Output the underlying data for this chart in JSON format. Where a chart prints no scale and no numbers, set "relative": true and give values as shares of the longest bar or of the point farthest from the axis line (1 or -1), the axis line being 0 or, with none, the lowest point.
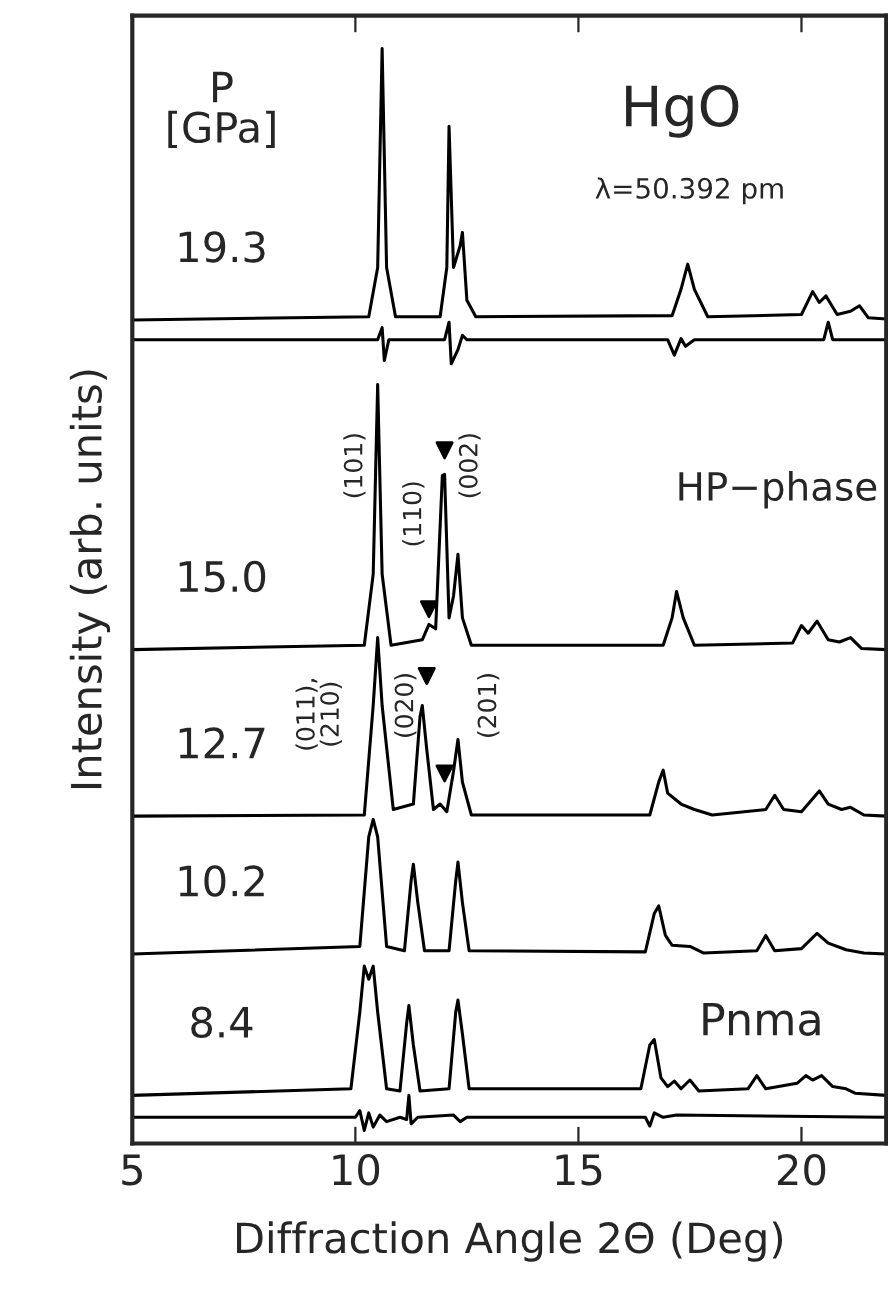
{
  "chart_data": {
    "type": "line",
    "relative": true,
    "xlabel": "Diffraction Angle 2Θ (Deg)",
    "ylabel": "Intensity (arb. units)",
    "xlim": [
      5,
      21.9
    ],
    "xticks": [
      5,
      10,
      15,
      20
    ],
    "grid": false,
    "legend": false,
    "marker": "none",
    "line_style": "solid",
    "annotations": [
      "P\n[GPa]",
      "HgO",
      "λ=50.392 pm",
      "HP−phase",
      "Pnma",
      "(101)",
      "(110)",
      "(002)",
      "(011),\n(210)",
      "(020)",
      "(201)"
    ],
    "series": [
      {
        "name": "19.3",
        "color": "#000000",
        "x": [
          5,
          10.3,
          10.5,
          10.6,
          10.7,
          10.9,
          11.9,
          12.05,
          12.1,
          12.2,
          12.35,
          12.4,
          12.5,
          12.7,
          17.1,
          17.3,
          17.45,
          17.6,
          17.9,
          20.0,
          20.25,
          20.4,
          20.55,
          20.8,
          21.1,
          21.3,
          21.5,
          21.9
        ],
        "values": [
          0.752,
          0.755,
          0.8,
          1.0,
          0.8,
          0.755,
          0.755,
          0.8,
          0.929,
          0.8,
          0.82,
          0.832,
          0.77,
          0.755,
          0.756,
          0.78,
          0.803,
          0.78,
          0.755,
          0.757,
          0.778,
          0.768,
          0.774,
          0.757,
          0.76,
          0.765,
          0.754,
          0.753
        ]
      },
      {
        "color": "#000000",
        "x": [
          5,
          10.5,
          10.6,
          10.65,
          10.75,
          12.0,
          12.1,
          12.15,
          12.3,
          12.4,
          12.5,
          17.0,
          17.15,
          17.3,
          17.4,
          17.6,
          20.5,
          20.6,
          20.7,
          21.9
        ],
        "values": [
          0.734,
          0.734,
          0.745,
          0.715,
          0.734,
          0.734,
          0.75,
          0.712,
          0.725,
          0.738,
          0.734,
          0.734,
          0.72,
          0.735,
          0.728,
          0.734,
          0.734,
          0.75,
          0.734,
          0.734
        ]
      },
      {
        "name": "15.0",
        "color": "#000000",
        "x": [
          5,
          10.2,
          10.4,
          10.5,
          10.6,
          10.8,
          11.5,
          11.65,
          11.8,
          11.95,
          12.0,
          12.1,
          12.2,
          12.3,
          12.4,
          12.6,
          16.9,
          17.1,
          17.2,
          17.35,
          17.6,
          19.8,
          20.0,
          20.15,
          20.35,
          20.6,
          20.85,
          21.1,
          21.35,
          21.9
        ],
        "values": [
          0.451,
          0.455,
          0.52,
          0.693,
          0.52,
          0.455,
          0.46,
          0.474,
          0.47,
          0.61,
          0.611,
          0.48,
          0.5,
          0.538,
          0.48,
          0.455,
          0.455,
          0.48,
          0.504,
          0.48,
          0.455,
          0.457,
          0.473,
          0.466,
          0.477,
          0.46,
          0.458,
          0.462,
          0.452,
          0.451
        ]
      },
      {
        "name": "12.7",
        "color": "#000000",
        "x": [
          5,
          10.2,
          10.4,
          10.5,
          10.6,
          10.85,
          11.3,
          11.45,
          11.5,
          11.6,
          11.75,
          11.9,
          12.05,
          12.2,
          12.3,
          12.4,
          12.6,
          16.6,
          16.8,
          16.9,
          17.0,
          17.3,
          17.6,
          18.0,
          19.2,
          19.4,
          19.6,
          20.0,
          20.4,
          20.6,
          20.9,
          21.1,
          21.4,
          21.9
        ],
        "values": [
          0.299,
          0.3,
          0.4,
          0.462,
          0.4,
          0.305,
          0.31,
          0.39,
          0.4,
          0.36,
          0.305,
          0.31,
          0.303,
          0.34,
          0.369,
          0.33,
          0.3,
          0.3,
          0.33,
          0.341,
          0.32,
          0.31,
          0.305,
          0.3,
          0.305,
          0.318,
          0.305,
          0.303,
          0.322,
          0.31,
          0.305,
          0.307,
          0.3,
          0.299
        ]
      },
      {
        "name": "10.2",
        "color": "#000000",
        "x": [
          5,
          10.1,
          10.3,
          10.4,
          10.5,
          10.7,
          11.1,
          11.25,
          11.3,
          11.4,
          11.55,
          12.1,
          12.25,
          12.3,
          12.4,
          12.55,
          16.5,
          16.7,
          16.8,
          16.95,
          17.1,
          17.5,
          17.8,
          19.0,
          19.2,
          19.4,
          20.0,
          20.35,
          20.6,
          21.0,
          21.4,
          21.9
        ],
        "values": [
          0.173,
          0.18,
          0.28,
          0.296,
          0.28,
          0.18,
          0.176,
          0.24,
          0.255,
          0.22,
          0.176,
          0.176,
          0.24,
          0.257,
          0.22,
          0.176,
          0.175,
          0.21,
          0.217,
          0.19,
          0.181,
          0.18,
          0.174,
          0.176,
          0.19,
          0.176,
          0.178,
          0.192,
          0.183,
          0.177,
          0.174,
          0.173
        ]
      },
      {
        "name": "8.4",
        "color": "#000000",
        "x": [
          5,
          9.9,
          10.1,
          10.2,
          10.3,
          10.4,
          10.5,
          10.7,
          11.0,
          11.15,
          11.2,
          11.3,
          11.45,
          12.1,
          12.25,
          12.3,
          12.4,
          12.55,
          16.4,
          16.6,
          16.7,
          16.85,
          17.0,
          17.15,
          17.3,
          17.5,
          17.7,
          18.8,
          19.0,
          19.2,
          19.9,
          20.1,
          20.25,
          20.45,
          20.7,
          21.0,
          21.2,
          21.9
        ],
        "values": [
          0.044,
          0.05,
          0.12,
          0.162,
          0.15,
          0.162,
          0.12,
          0.05,
          0.048,
          0.11,
          0.126,
          0.09,
          0.048,
          0.05,
          0.12,
          0.131,
          0.1,
          0.05,
          0.05,
          0.09,
          0.095,
          0.06,
          0.052,
          0.057,
          0.05,
          0.058,
          0.048,
          0.05,
          0.062,
          0.05,
          0.055,
          0.062,
          0.058,
          0.062,
          0.052,
          0.05,
          0.046,
          0.044
        ]
      },
      {
        "color": "#000000",
        "x": [
          5,
          10.0,
          10.1,
          10.2,
          10.3,
          10.4,
          10.55,
          10.7,
          11.0,
          11.15,
          11.2,
          11.25,
          11.4,
          12.2,
          12.35,
          12.5,
          16.5,
          16.6,
          16.7,
          16.9,
          17.2,
          21.9
        ],
        "values": [
          0.024,
          0.024,
          0.03,
          0.012,
          0.028,
          0.015,
          0.026,
          0.02,
          0.024,
          0.022,
          0.044,
          0.018,
          0.024,
          0.026,
          0.02,
          0.024,
          0.024,
          0.016,
          0.028,
          0.024,
          0.026,
          0.024
        ]
      },
      {
        "type": "scatter",
        "marker": "triangle",
        "color": "#000000",
        "x": [
          12.0,
          11.65,
          11.6,
          12.0
        ],
        "values": [
          0.633,
          0.488,
          0.427,
          0.338
        ]
      }
    ]
  }
}
